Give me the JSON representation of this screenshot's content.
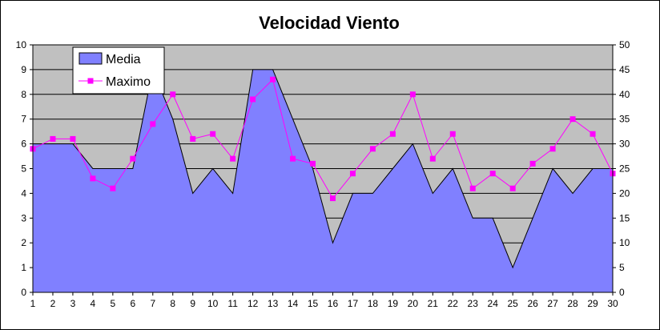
{
  "chart_data": {
    "type": "area",
    "title": "Velocidad Viento",
    "categories": [
      "1",
      "2",
      "3",
      "4",
      "5",
      "6",
      "7",
      "8",
      "9",
      "10",
      "11",
      "12",
      "13",
      "14",
      "15",
      "16",
      "17",
      "18",
      "19",
      "20",
      "21",
      "22",
      "23",
      "24",
      "25",
      "26",
      "27",
      "28",
      "29",
      "30"
    ],
    "series": [
      {
        "name": "Media",
        "type": "area",
        "axis": "left",
        "color": "#8080ff",
        "values": [
          6,
          6,
          6,
          5,
          5,
          5,
          9,
          7,
          4,
          5,
          4,
          9,
          9,
          7,
          5,
          2,
          4,
          4,
          5,
          6,
          4,
          5,
          3,
          3,
          1,
          3,
          5,
          4,
          5,
          5
        ]
      },
      {
        "name": "Maximo",
        "type": "line",
        "axis": "right",
        "color": "#ff00ff",
        "values": [
          29,
          31,
          31,
          23,
          21,
          27,
          34,
          40,
          31,
          32,
          27,
          39,
          43,
          27,
          26,
          19,
          24,
          29,
          32,
          40,
          27,
          32,
          21,
          24,
          21,
          26,
          29,
          35,
          32,
          24
        ]
      }
    ],
    "y_left": {
      "min": 0,
      "max": 10,
      "ticks": [
        "0",
        "1",
        "2",
        "3",
        "4",
        "5",
        "6",
        "7",
        "8",
        "9",
        "10"
      ]
    },
    "y_right": {
      "min": 0,
      "max": 50,
      "ticks": [
        "0",
        "5",
        "10",
        "15",
        "20",
        "25",
        "30",
        "35",
        "40",
        "45",
        "50"
      ]
    },
    "plot_background": "#c0c0c0",
    "grid": true,
    "legend": "top-left"
  }
}
